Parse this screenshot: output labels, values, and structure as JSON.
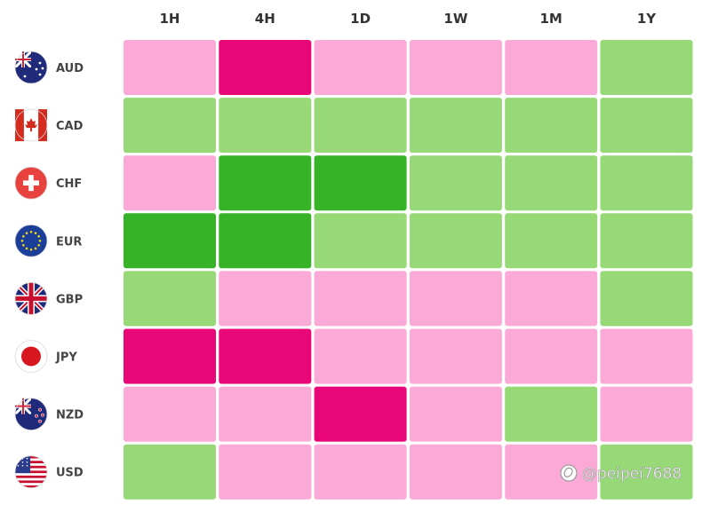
{
  "chart_data": {
    "type": "heatmap",
    "columns": [
      "1H",
      "4H",
      "1D",
      "1W",
      "1M",
      "1Y"
    ],
    "rows": [
      {
        "currency": "AUD",
        "flag": "australia-flag-icon",
        "levels": [
          "weak",
          "strong-weak",
          "weak",
          "weak",
          "weak",
          "strong"
        ]
      },
      {
        "currency": "CAD",
        "flag": "canada-flag-icon",
        "levels": [
          "strong",
          "strong",
          "strong",
          "strong",
          "strong",
          "strong"
        ]
      },
      {
        "currency": "CHF",
        "flag": "switzerland-flag-icon",
        "levels": [
          "weak",
          "very-strong",
          "very-strong",
          "strong",
          "strong",
          "strong"
        ]
      },
      {
        "currency": "EUR",
        "flag": "eu-flag-icon",
        "levels": [
          "very-strong",
          "very-strong",
          "strong",
          "strong",
          "strong",
          "strong"
        ]
      },
      {
        "currency": "GBP",
        "flag": "uk-flag-icon",
        "levels": [
          "strong",
          "weak",
          "weak",
          "weak",
          "weak",
          "strong"
        ]
      },
      {
        "currency": "JPY",
        "flag": "japan-flag-icon",
        "levels": [
          "strong-weak",
          "strong-weak",
          "weak",
          "weak",
          "weak",
          "weak"
        ]
      },
      {
        "currency": "NZD",
        "flag": "new-zealand-flag-icon",
        "levels": [
          "weak",
          "weak",
          "strong-weak",
          "weak",
          "strong",
          "weak"
        ]
      },
      {
        "currency": "USD",
        "flag": "usa-flag-icon",
        "levels": [
          "strong",
          "weak",
          "weak",
          "weak",
          "weak",
          "strong"
        ]
      }
    ],
    "colors": {
      "very-strong": "#36b327",
      "strong": "#97d977",
      "weak": "#fba9d6",
      "strong-weak": "#e90677"
    }
  },
  "watermark": {
    "text": "@peipei7688",
    "icon": "weibo-logo-icon"
  }
}
